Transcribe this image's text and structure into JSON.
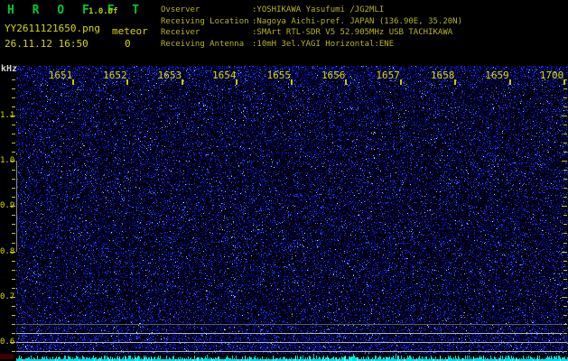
{
  "window": {
    "app_title": "H R O F F T",
    "version": "1.0.0f"
  },
  "session": {
    "filename": "YY2611121650.png",
    "mode": "meteor",
    "datetime": "26.11.12 16:50",
    "meteor_count": "0"
  },
  "info": {
    "rows": [
      {
        "label": "Ovserver",
        "value": ":YOSHIKAWA Yasufumi /JG2MLI"
      },
      {
        "label": "Receiving Location",
        "value": ":Nagoya Aichi-pref. JAPAN (136.90E, 35.20N)"
      },
      {
        "label": "Receiver",
        "value": ":SMArt RTL-SDR V5 52.905MHz USB TACHIKAWA"
      },
      {
        "label": "Receiving Antenna",
        "value": ":10mH 3el.YAGI Horizontal:ENE"
      }
    ]
  },
  "axes": {
    "freq_unit": "kHz",
    "time_labels": [
      "1651",
      "1652",
      "1653",
      "1654",
      "1655",
      "1656",
      "1657",
      "1658",
      "1659",
      "1700"
    ],
    "freq_labels": [
      "1.1",
      "1.0",
      "0.9",
      "0.8",
      "0.7",
      "0.6"
    ]
  },
  "colors": {
    "title_green": "#00c832",
    "label_yellow": "#d8d800",
    "info_text": "#b4b41e",
    "noise_blue_dim": "#000050",
    "noise_blue_bright": "#4664ff",
    "carrier_line_gray": "#b2b2b2",
    "level_graph_cyan": "#00e0e0",
    "corner_patch_red": "#3c0000"
  }
}
